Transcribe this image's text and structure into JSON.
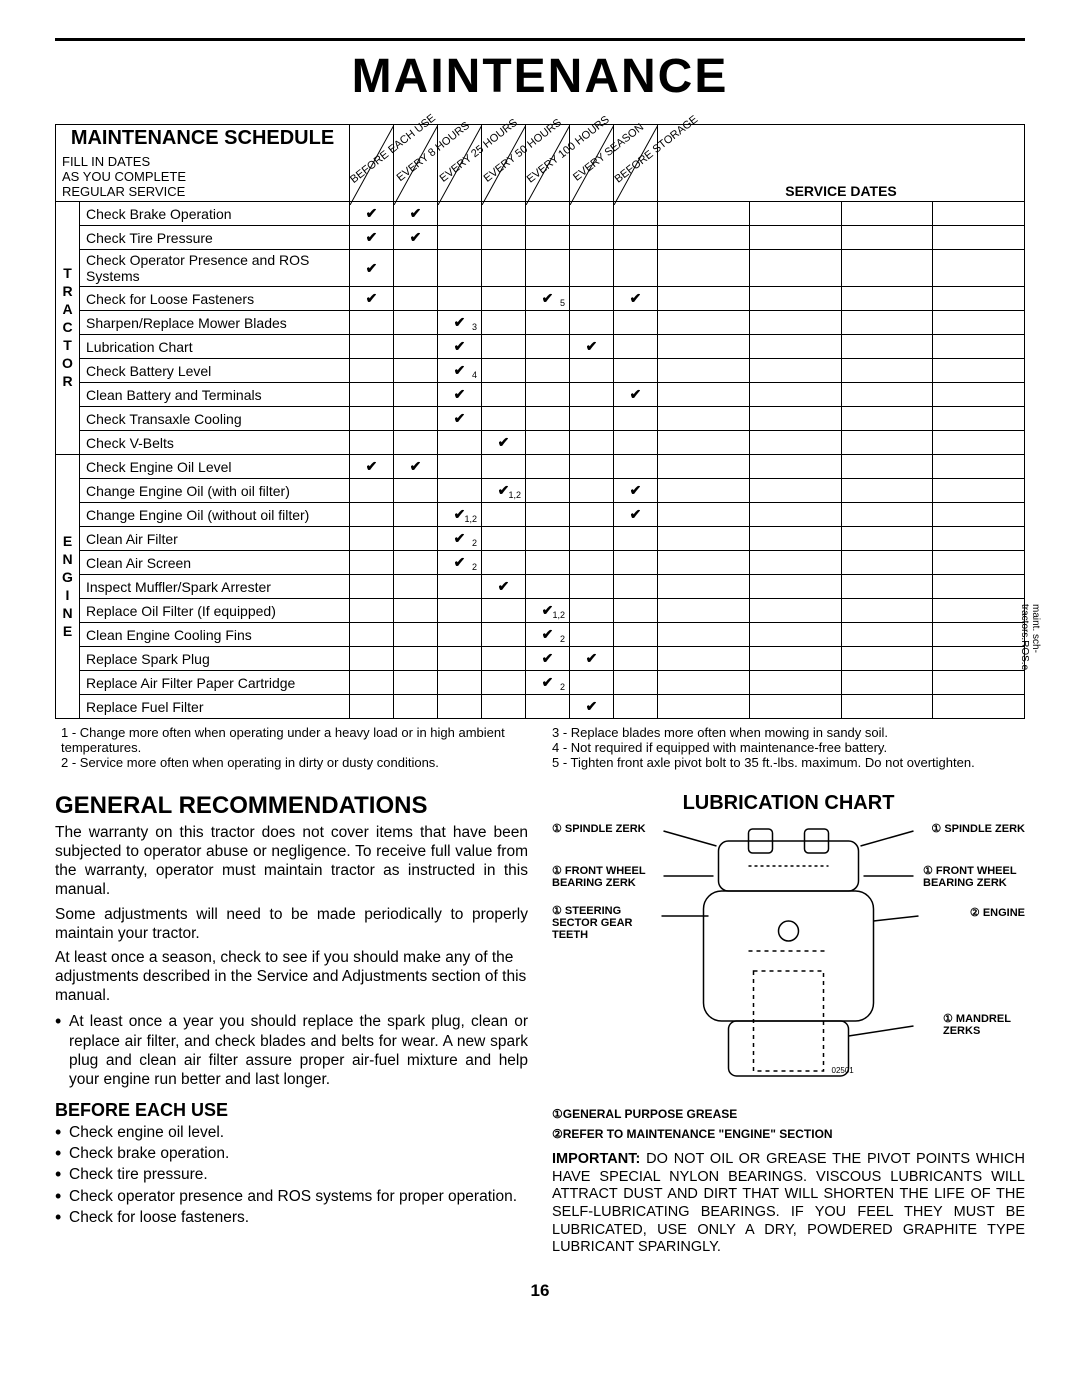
{
  "page_title": "MAINTENANCE",
  "page_number": "16",
  "schedule": {
    "title": "MAINTENANCE SCHEDULE",
    "fill_text": "FILL IN DATES\nAS YOU COMPLETE\nREGULAR SERVICE",
    "interval_cols": [
      "BEFORE EACH USE",
      "EVERY 8 HOURS",
      "EVERY 25 HOURS",
      "EVERY 50 HOURS",
      "EVERY 100 HOURS",
      "EVERY SEASON",
      "BEFORE STORAGE"
    ],
    "service_dates_label": "SERVICE DATES",
    "groups": [
      {
        "label": "TRACTOR",
        "rows": [
          {
            "task": "Check Brake Operation",
            "marks": {
              "0": "",
              "1": ""
            }
          },
          {
            "task": "Check Tire Pressure",
            "marks": {
              "0": "",
              "1": ""
            }
          },
          {
            "task": "Check Operator Presence and ROS Systems",
            "marks": {
              "0": ""
            }
          },
          {
            "task": "Check for Loose Fasteners",
            "marks": {
              "0": "",
              "4": "5",
              "6": ""
            }
          },
          {
            "task": "Sharpen/Replace Mower Blades",
            "marks": {
              "2": "3"
            }
          },
          {
            "task": "Lubrication Chart",
            "marks": {
              "2": "",
              "5": ""
            }
          },
          {
            "task": "Check Battery Level",
            "marks": {
              "2": "4"
            }
          },
          {
            "task": "Clean Battery and Terminals",
            "marks": {
              "2": "",
              "6": ""
            }
          },
          {
            "task": "Check Transaxle Cooling",
            "marks": {
              "2": ""
            }
          },
          {
            "task": "Check V-Belts",
            "marks": {
              "3": ""
            }
          }
        ]
      },
      {
        "label": "ENGINE",
        "rows": [
          {
            "task": "Check Engine Oil Level",
            "marks": {
              "0": "",
              "1": ""
            }
          },
          {
            "task": "Change Engine Oil (with oil filter)",
            "marks": {
              "3": "1,2",
              "6": ""
            }
          },
          {
            "task": "Change Engine Oil (without oil filter)",
            "marks": {
              "2": "1,2",
              "6": ""
            }
          },
          {
            "task": "Clean Air Filter",
            "marks": {
              "2": "2"
            }
          },
          {
            "task": "Clean Air Screen",
            "marks": {
              "2": "2"
            }
          },
          {
            "task": "Inspect Muffler/Spark Arrester",
            "marks": {
              "3": ""
            }
          },
          {
            "task": "Replace Oil Filter (If equipped)",
            "marks": {
              "4": "1,2"
            }
          },
          {
            "task": "Clean Engine Cooling Fins",
            "marks": {
              "4": "2"
            }
          },
          {
            "task": "Replace Spark Plug",
            "marks": {
              "4": "",
              "5": ""
            }
          },
          {
            "task": "Replace Air Filter Paper Cartridge",
            "marks": {
              "4": "2"
            }
          },
          {
            "task": "Replace Fuel Filter",
            "marks": {
              "5": ""
            }
          }
        ]
      }
    ],
    "footnotes_left": "1 - Change more often when operating under a heavy load or in high ambient temperatures.\n2 - Service more often when operating in dirty or dusty conditions.",
    "footnotes_right": "3 - Replace blades more often when mowing in sandy soil.\n4 - Not required if equipped with maintenance-free battery.\n5 - Tighten front axle pivot bolt to 35 ft.-lbs. maximum. Do not overtighten.",
    "side_text": "maint. sch-tractors.ROS.e"
  },
  "general": {
    "heading": "GENERAL RECOMMENDATIONS",
    "p1": "The warranty on this tractor does not cover items that have been subjected to operator abuse or negligence. To receive full value from the warranty, operator must maintain tractor as instructed in this manual.",
    "p2": "Some adjustments will need to be made periodically to properly maintain your tractor.",
    "p3": "At least once a season, check to see if you should make any of the adjustments described in the Service and Adjustments section of this manual.",
    "bullet": "At least once a year you should replace the spark plug, clean or replace air filter, and check blades and belts for wear.  A new spark plug and clean air filter assure proper air-fuel mixture and help your engine run better and last longer.",
    "before_heading": "BEFORE EACH USE",
    "before_items": [
      "Check engine oil level.",
      "Check brake operation.",
      "Check tire pressure.",
      "Check operator presence and ROS systems for proper operation.",
      "Check for loose fasteners."
    ]
  },
  "lube": {
    "heading": "LUBRICATION CHART",
    "callouts": {
      "spindle_l": "① SPINDLE ZERK",
      "spindle_r": "① SPINDLE ZERK",
      "wheel_l": "① FRONT WHEEL BEARING  ZERK",
      "wheel_r": "① FRONT WHEEL BEARING  ZERK",
      "steering": "① STEERING SECTOR GEAR TEETH",
      "engine": "② ENGINE",
      "mandrel": "① MANDREL ZERKS"
    },
    "fig_id": "02501",
    "legend1": "①GENERAL PURPOSE GREASE",
    "legend2": "②REFER TO MAINTENANCE \"ENGINE\" SECTION",
    "important_label": "IMPORTANT:",
    "important": "  DO NOT OIL OR GREASE THE PIVOT POINTS WHICH HAVE SPECIAL NYLON BEARINGS.  VISCOUS LUBRICANTS WILL ATTRACT DUST AND DIRT THAT WILL SHORTEN THE LIFE OF THE SELF-LUBRICATING BEARINGS.  IF YOU FEEL THEY MUST BE LUBRICATED, USE ONLY A DRY, POWDERED GRAPHITE TYPE LUBRICANT SPARINGLY."
  }
}
